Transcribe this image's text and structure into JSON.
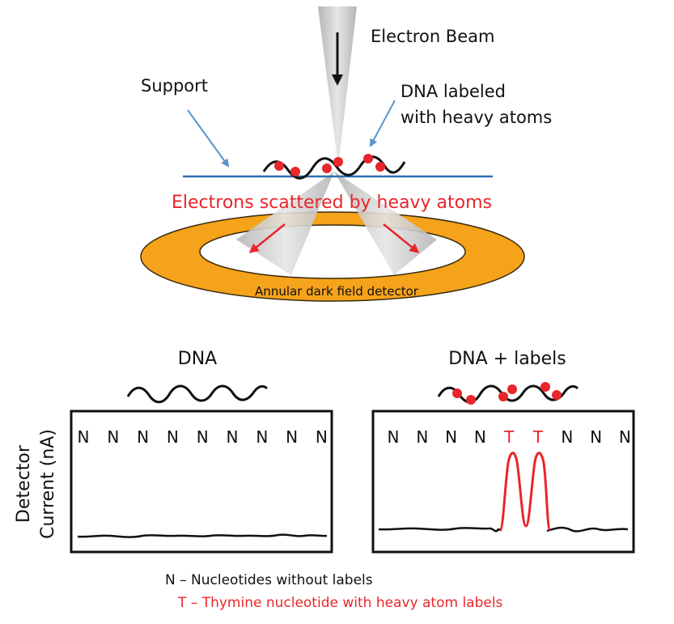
{
  "diagram": {
    "beam_label": "Electron Beam",
    "support_label": "Support",
    "dna_label_line1": "DNA labeled",
    "dna_label_line2": "with heavy atoms",
    "scatter_label": "Electrons scattered by heavy atoms",
    "detector_label": "Annular dark field detector"
  },
  "panels": {
    "ylabel_line1": "Detector",
    "ylabel_line2": "Current (nA)",
    "left": {
      "title": "DNA",
      "nucleotides": [
        "N",
        "N",
        "N",
        "N",
        "N",
        "N",
        "N",
        "N",
        "N"
      ]
    },
    "right": {
      "title": "DNA + labels",
      "nucleotides": [
        "N",
        "N",
        "N",
        "N",
        "T",
        "T",
        "N",
        "N",
        "N"
      ]
    }
  },
  "legend": {
    "n_text": "N – Nucleotides without labels",
    "t_text": "T – Thymine nucleotide with heavy atom labels"
  },
  "colors": {
    "label_red": "#e8262b",
    "detector_orange": "#f5a31a",
    "support_blue": "#2e6db4",
    "arrow_blue": "#5b93cc",
    "beam_gray": "#c8c8c8"
  }
}
